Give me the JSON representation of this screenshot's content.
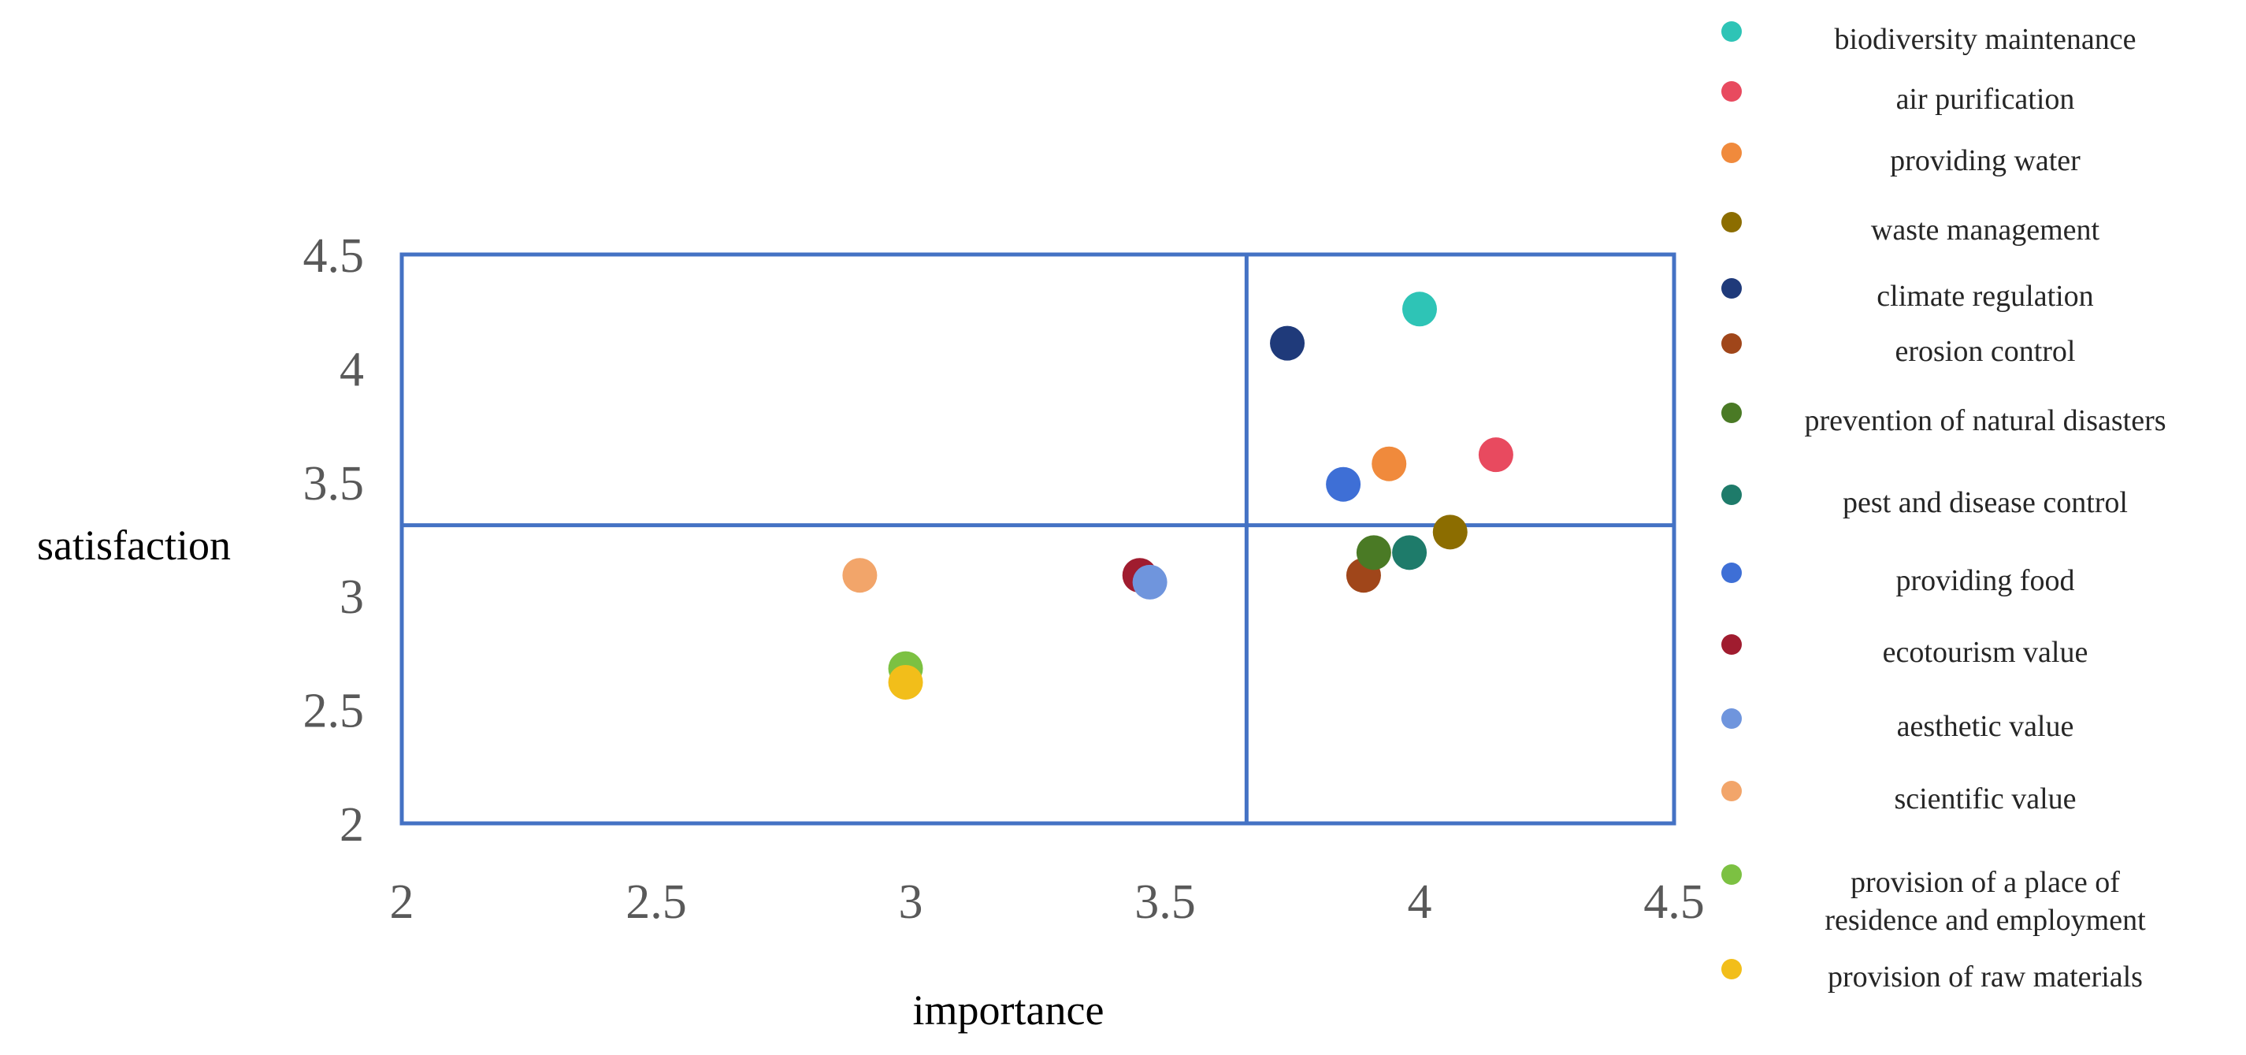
{
  "chart_data": {
    "type": "scatter",
    "title": "",
    "xlabel": "importance",
    "ylabel": "satisfaction",
    "xlim": [
      2,
      4.5
    ],
    "ylim": [
      2,
      4.5
    ],
    "x_ticks": [
      "2",
      "2.5",
      "3",
      "3.5",
      "4",
      "4.5"
    ],
    "y_ticks": [
      "2",
      "2.5",
      "3",
      "3.5",
      "4",
      "4.5"
    ],
    "quadrant_lines": {
      "x": 3.66,
      "y": 3.31
    },
    "grid": false,
    "legend_position": "right",
    "frame_color": "#4472C4",
    "series": [
      {
        "name": "biodiversity maintenance",
        "color": "#2EC4B6",
        "x": 4.0,
        "y": 4.26
      },
      {
        "name": "air purification",
        "color": "#E84A5F",
        "x": 4.15,
        "y": 3.62
      },
      {
        "name": "providing water",
        "color": "#F08A3C",
        "x": 3.94,
        "y": 3.58
      },
      {
        "name": "waste management",
        "color": "#8C6D00",
        "x": 4.06,
        "y": 3.28
      },
      {
        "name": "climate regulation",
        "color": "#1F3A7A",
        "x": 3.74,
        "y": 4.11
      },
      {
        "name": "erosion control",
        "color": "#A0461A",
        "x": 3.89,
        "y": 3.09
      },
      {
        "name": "prevention of natural disasters",
        "color": "#4A7A25",
        "x": 3.91,
        "y": 3.19
      },
      {
        "name": "pest and disease control",
        "color": "#1E7B6A",
        "x": 3.98,
        "y": 3.19
      },
      {
        "name": "providing food",
        "color": "#3E6FD6",
        "x": 3.85,
        "y": 3.49
      },
      {
        "name": "ecotourism value",
        "color": "#A01C2F",
        "x": 3.45,
        "y": 3.09
      },
      {
        "name": "aesthetic value",
        "color": "#6F95DD",
        "x": 3.47,
        "y": 3.06
      },
      {
        "name": "scientific value",
        "color": "#F2A56A",
        "x": 2.9,
        "y": 3.09
      },
      {
        "name": "provision of a place of residence and employment",
        "color": "#7CC142",
        "x": 2.99,
        "y": 2.68
      },
      {
        "name": "provision of raw materials",
        "color": "#F2BE1A",
        "x": 2.99,
        "y": 2.62
      }
    ],
    "legend_lines": [
      [
        "biodiversity maintenance"
      ],
      [
        "air purification"
      ],
      [
        "providing water"
      ],
      [
        "waste management"
      ],
      [
        "climate regulation"
      ],
      [
        "erosion control"
      ],
      [
        "prevention of natural disasters"
      ],
      [
        "pest and disease control"
      ],
      [
        "providing food"
      ],
      [
        "ecotourism value"
      ],
      [
        "aesthetic value"
      ],
      [
        "scientific value"
      ],
      [
        "provision of a place of",
        "residence and employment"
      ],
      [
        "provision of raw materials"
      ]
    ]
  }
}
